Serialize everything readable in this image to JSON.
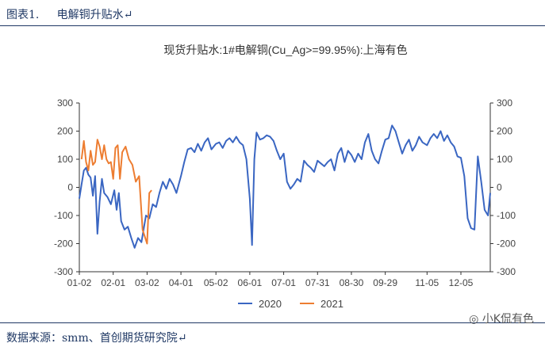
{
  "header": {
    "label": "图表1.",
    "title": "电解铜升贴水",
    "mark": "↵"
  },
  "footer": {
    "text": "数据来源：smm、首创期货研究院",
    "mark": "↵"
  },
  "watermark": {
    "text": "小K侃有色"
  },
  "chart_data": {
    "type": "line",
    "title": "现货升贴水:1#电解铜(Cu_Ag>=99.95%):上海有色",
    "ylim": [
      -300,
      300
    ],
    "yticks": [
      300,
      200,
      100,
      0,
      -100,
      -200,
      -300
    ],
    "x_range": [
      "01-02",
      "12-31"
    ],
    "xticks": [
      "01-02",
      "02-01",
      "03-02",
      "04-01",
      "05-02",
      "06-01",
      "07-01",
      "07-31",
      "08-30",
      "09-29",
      "11-05",
      "12-05"
    ],
    "legend_position": "bottom",
    "grid": false,
    "dual_axis": true,
    "series": [
      {
        "name": "2020",
        "color": "#3a66c2",
        "points": [
          [
            "01-02",
            -40
          ],
          [
            "01-04",
            10
          ],
          [
            "01-06",
            60
          ],
          [
            "01-08",
            70
          ],
          [
            "01-10",
            45
          ],
          [
            "01-12",
            35
          ],
          [
            "01-14",
            -30
          ],
          [
            "01-16",
            40
          ],
          [
            "01-18",
            -165
          ],
          [
            "01-20",
            -50
          ],
          [
            "01-22",
            30
          ],
          [
            "01-24",
            -20
          ],
          [
            "01-27",
            -35
          ],
          [
            "01-30",
            -60
          ],
          [
            "02-02",
            -10
          ],
          [
            "02-04",
            -80
          ],
          [
            "02-06",
            -20
          ],
          [
            "02-08",
            -120
          ],
          [
            "02-11",
            -150
          ],
          [
            "02-14",
            -140
          ],
          [
            "02-17",
            -180
          ],
          [
            "02-20",
            -215
          ],
          [
            "02-23",
            -180
          ],
          [
            "02-26",
            -195
          ],
          [
            "03-01",
            -100
          ],
          [
            "03-04",
            -110
          ],
          [
            "03-07",
            -60
          ],
          [
            "03-10",
            -70
          ],
          [
            "03-13",
            -20
          ],
          [
            "03-16",
            20
          ],
          [
            "03-19",
            -5
          ],
          [
            "03-22",
            30
          ],
          [
            "03-25",
            10
          ],
          [
            "03-28",
            -20
          ],
          [
            "04-01",
            40
          ],
          [
            "04-04",
            90
          ],
          [
            "04-07",
            135
          ],
          [
            "04-10",
            140
          ],
          [
            "04-13",
            125
          ],
          [
            "04-16",
            155
          ],
          [
            "04-19",
            130
          ],
          [
            "04-22",
            160
          ],
          [
            "04-25",
            175
          ],
          [
            "04-28",
            135
          ],
          [
            "05-02",
            155
          ],
          [
            "05-05",
            160
          ],
          [
            "05-08",
            140
          ],
          [
            "05-11",
            165
          ],
          [
            "05-14",
            175
          ],
          [
            "05-17",
            160
          ],
          [
            "05-20",
            180
          ],
          [
            "05-23",
            160
          ],
          [
            "05-26",
            150
          ],
          [
            "05-29",
            100
          ],
          [
            "06-01",
            -40
          ],
          [
            "06-03",
            -205
          ],
          [
            "06-05",
            100
          ],
          [
            "06-07",
            195
          ],
          [
            "06-10",
            170
          ],
          [
            "06-13",
            175
          ],
          [
            "06-16",
            185
          ],
          [
            "06-19",
            180
          ],
          [
            "06-22",
            165
          ],
          [
            "06-25",
            130
          ],
          [
            "06-28",
            100
          ],
          [
            "07-01",
            120
          ],
          [
            "07-04",
            20
          ],
          [
            "07-07",
            -5
          ],
          [
            "07-10",
            10
          ],
          [
            "07-13",
            30
          ],
          [
            "07-16",
            20
          ],
          [
            "07-19",
            95
          ],
          [
            "07-22",
            80
          ],
          [
            "07-25",
            70
          ],
          [
            "07-28",
            55
          ],
          [
            "07-31",
            95
          ],
          [
            "08-03",
            85
          ],
          [
            "08-06",
            75
          ],
          [
            "08-09",
            90
          ],
          [
            "08-12",
            100
          ],
          [
            "08-15",
            60
          ],
          [
            "08-18",
            120
          ],
          [
            "08-21",
            140
          ],
          [
            "08-24",
            90
          ],
          [
            "08-27",
            130
          ],
          [
            "08-30",
            115
          ],
          [
            "09-02",
            90
          ],
          [
            "09-05",
            120
          ],
          [
            "09-08",
            100
          ],
          [
            "09-11",
            160
          ],
          [
            "09-14",
            190
          ],
          [
            "09-17",
            130
          ],
          [
            "09-20",
            100
          ],
          [
            "09-23",
            85
          ],
          [
            "09-26",
            130
          ],
          [
            "09-29",
            170
          ],
          [
            "10-02",
            175
          ],
          [
            "10-05",
            220
          ],
          [
            "10-08",
            200
          ],
          [
            "10-11",
            160
          ],
          [
            "10-14",
            120
          ],
          [
            "10-17",
            150
          ],
          [
            "10-20",
            170
          ],
          [
            "10-23",
            130
          ],
          [
            "10-26",
            150
          ],
          [
            "10-29",
            180
          ],
          [
            "11-01",
            160
          ],
          [
            "11-05",
            150
          ],
          [
            "11-08",
            175
          ],
          [
            "11-11",
            190
          ],
          [
            "11-14",
            175
          ],
          [
            "11-17",
            200
          ],
          [
            "11-20",
            165
          ],
          [
            "11-23",
            185
          ],
          [
            "11-26",
            160
          ],
          [
            "11-29",
            145
          ],
          [
            "12-02",
            110
          ],
          [
            "12-05",
            105
          ],
          [
            "12-08",
            40
          ],
          [
            "12-11",
            -110
          ],
          [
            "12-14",
            -145
          ],
          [
            "12-17",
            -150
          ],
          [
            "12-20",
            110
          ],
          [
            "12-23",
            20
          ],
          [
            "12-26",
            -80
          ],
          [
            "12-29",
            -100
          ],
          [
            "12-31",
            -20
          ]
        ]
      },
      {
        "name": "2021",
        "color": "#ed7d31",
        "points": [
          [
            "01-04",
            100
          ],
          [
            "01-06",
            165
          ],
          [
            "01-08",
            90
          ],
          [
            "01-10",
            60
          ],
          [
            "01-12",
            130
          ],
          [
            "01-14",
            80
          ],
          [
            "01-16",
            90
          ],
          [
            "01-18",
            170
          ],
          [
            "01-20",
            145
          ],
          [
            "01-22",
            100
          ],
          [
            "01-24",
            150
          ],
          [
            "01-26",
            100
          ],
          [
            "01-28",
            85
          ],
          [
            "01-30",
            90
          ],
          [
            "02-01",
            30
          ],
          [
            "02-03",
            140
          ],
          [
            "02-05",
            150
          ],
          [
            "02-07",
            30
          ],
          [
            "02-09",
            125
          ],
          [
            "02-12",
            145
          ],
          [
            "02-15",
            100
          ],
          [
            "02-18",
            80
          ],
          [
            "02-21",
            20
          ],
          [
            "02-24",
            40
          ],
          [
            "02-27",
            -150
          ],
          [
            "03-02",
            -200
          ],
          [
            "03-04",
            -20
          ],
          [
            "03-06",
            -10
          ]
        ]
      }
    ]
  }
}
